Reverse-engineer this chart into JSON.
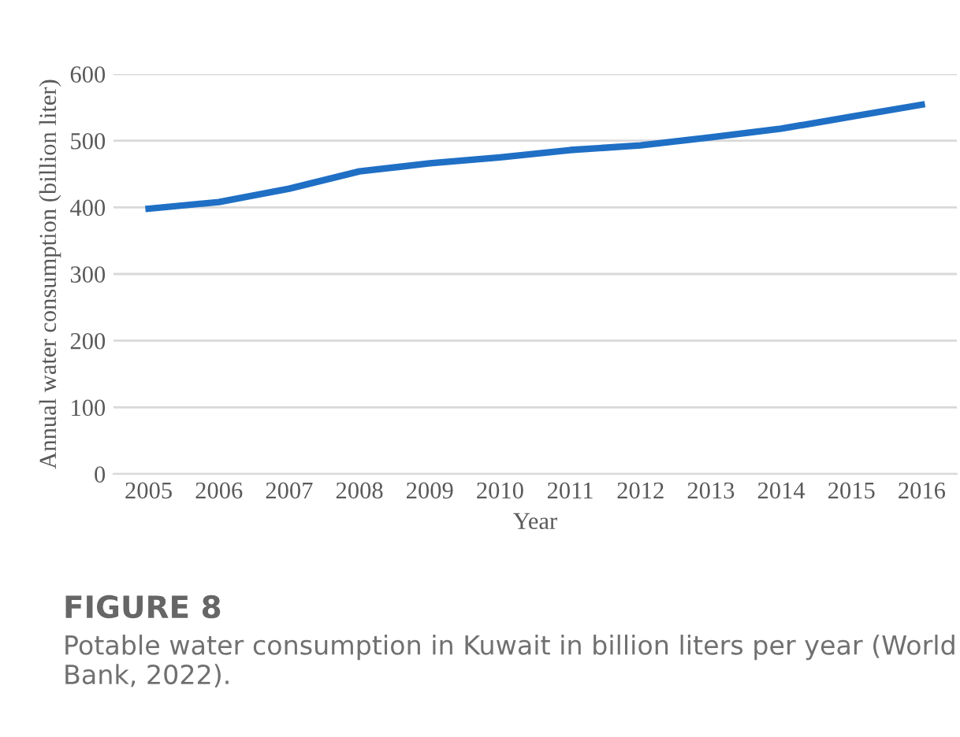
{
  "chart_data": {
    "type": "line",
    "title": "FIGURE 8",
    "xlabel": "Year",
    "ylabel": "Annual water consumption (billion liter)",
    "annotations": [
      "Potable water consumption in Kuwait in billion liters per year (World Bank, 2022)."
    ],
    "categories": [
      "2005",
      "2006",
      "2007",
      "2008",
      "2009",
      "2010",
      "2011",
      "2012",
      "2013",
      "2014",
      "2015",
      "2016"
    ],
    "series": [
      {
        "color": "#1f6fc5",
        "values": [
          398,
          408,
          428,
          454,
          466,
          475,
          486,
          493,
          505,
          518,
          536,
          554
        ]
      }
    ],
    "ylim": [
      0,
      600
    ],
    "yticks": [
      0,
      100,
      200,
      300,
      400,
      500,
      600
    ],
    "grid": "y",
    "legend": false,
    "marker": "none",
    "line_style": "solid"
  }
}
